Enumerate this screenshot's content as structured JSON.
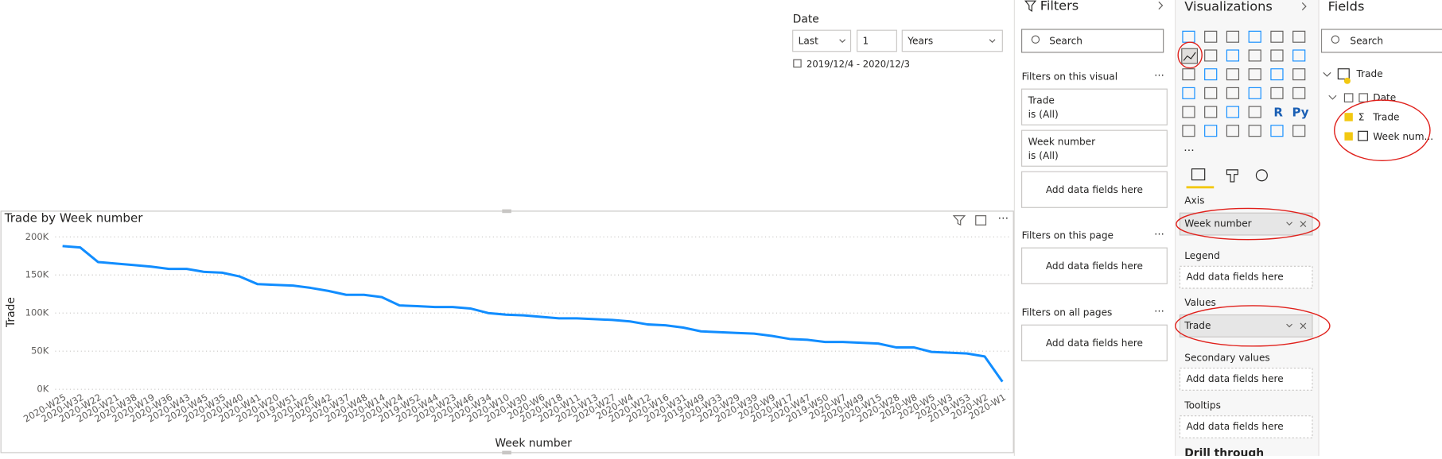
{
  "slicer": {
    "title": "Date",
    "mode": "Last",
    "count": "1",
    "unit": "Years",
    "range": "2019/12/4 - 2020/12/3"
  },
  "filters": {
    "title": "Filters",
    "search": "Search",
    "sections": [
      {
        "title": "Filters on this visual",
        "cards": [
          {
            "field": "Trade",
            "state": "is (All)"
          },
          {
            "field": "Week number",
            "state": "is (All)"
          }
        ],
        "add": "Add data fields here"
      },
      {
        "title": "Filters on this page",
        "add": "Add data fields here"
      },
      {
        "title": "Filters on all pages",
        "add": "Add data fields here"
      }
    ]
  },
  "visualizations": {
    "title": "Visualizations",
    "icon_labels": [
      "R",
      "Py"
    ],
    "wells": [
      {
        "title": "Axis",
        "field": "Week number"
      },
      {
        "title": "Legend",
        "placeholder": "Add data fields here"
      },
      {
        "title": "Values",
        "field": "Trade"
      },
      {
        "title": "Secondary values",
        "placeholder": "Add data fields here"
      },
      {
        "title": "Tooltips",
        "placeholder": "Add data fields here"
      }
    ],
    "drill": "Drill through"
  },
  "fields": {
    "title": "Fields",
    "search": "Search",
    "table": "Trade",
    "items": [
      "Date",
      "Trade",
      "Week num..."
    ],
    "sigma": "Σ"
  },
  "chart_data": {
    "type": "line",
    "title": "Trade by Week number",
    "x_label": "Week number",
    "y_label": "Trade",
    "color": "#118DFF",
    "grid": true,
    "categories": [
      "2020-W25",
      "2020-W32",
      "2020-W22",
      "2020-W21",
      "2020-W38",
      "2020-W19",
      "2020-W36",
      "2020-W43",
      "2020-W45",
      "2020-W35",
      "2020-W40",
      "2020-W41",
      "2020-W20",
      "2019-W51",
      "2020-W26",
      "2020-W42",
      "2020-W37",
      "2020-W48",
      "2020-W14",
      "2020-W24",
      "2019-W52",
      "2020-W44",
      "2020-W23",
      "2020-W46",
      "2020-W34",
      "2020-W10",
      "2020-W30",
      "2020-W6",
      "2020-W18",
      "2020-W11",
      "2020-W13",
      "2020-W27",
      "2020-W4",
      "2020-W12",
      "2020-W16",
      "2020-W31",
      "2019-W49",
      "2020-W33",
      "2020-W29",
      "2020-W39",
      "2020-W9",
      "2020-W17",
      "2020-W47",
      "2019-W50",
      "2020-W7",
      "2020-W49",
      "2020-W15",
      "2020-W28",
      "2020-W8",
      "2020-W5",
      "2020-W3",
      "2019-W53",
      "2020-W2",
      "2020-W1"
    ],
    "values": [
      188000,
      186000,
      167000,
      165000,
      163000,
      161000,
      158000,
      158000,
      154000,
      153000,
      148000,
      138000,
      137000,
      136000,
      133000,
      129000,
      124000,
      124000,
      121000,
      110000,
      109000,
      108000,
      108000,
      106000,
      100000,
      98000,
      97000,
      95000,
      93000,
      93000,
      92000,
      91000,
      89000,
      85000,
      84000,
      81000,
      76000,
      75000,
      74000,
      73000,
      70000,
      66000,
      65000,
      62000,
      62000,
      61000,
      60000,
      55000,
      55000,
      49000,
      48000,
      47000,
      43000,
      10000
    ],
    "ylim": [
      0,
      200000
    ],
    "yticks": [
      {
        "value": 0,
        "label": "0K"
      },
      {
        "value": 50000,
        "label": "50K"
      },
      {
        "value": 100000,
        "label": "100K"
      },
      {
        "value": 150000,
        "label": "150K"
      },
      {
        "value": 200000,
        "label": "200K"
      }
    ]
  }
}
